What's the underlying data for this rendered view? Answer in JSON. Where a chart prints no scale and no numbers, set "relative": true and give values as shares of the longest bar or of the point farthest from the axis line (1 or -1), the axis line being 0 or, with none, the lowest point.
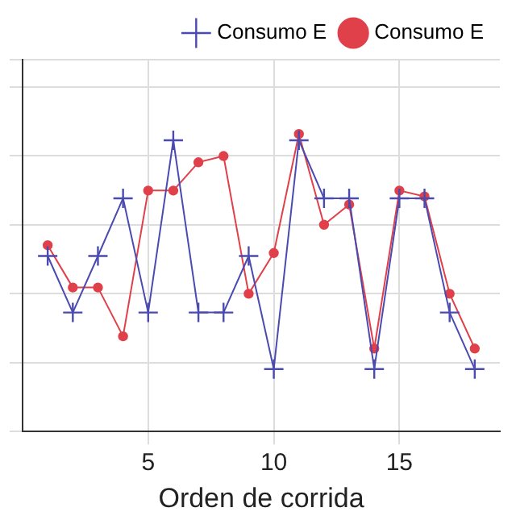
{
  "chart_data": {
    "type": "line",
    "xlabel": "Orden de corrida",
    "relative": true,
    "x": [
      1,
      2,
      3,
      4,
      5,
      6,
      7,
      8,
      9,
      10,
      11,
      12,
      13,
      14,
      15,
      16,
      17,
      18
    ],
    "xlim": [
      0,
      19
    ],
    "xticks": [
      5,
      10,
      15
    ],
    "grid": true,
    "legend": "top right",
    "series": [
      {
        "name": "Consumo E",
        "color": "#e0404a",
        "marker": "circle",
        "values": [
          0.626,
          0.484,
          0.484,
          0.32,
          0.81,
          0.81,
          0.905,
          0.926,
          0.463,
          0.6,
          1,
          0.695,
          0.763,
          0.279,
          0.81,
          0.79,
          0.463,
          0.279
        ]
      },
      {
        "name": "Consumo E",
        "color": "#4a4ab0",
        "marker": "cross",
        "values": [
          0.59,
          0.4,
          0.59,
          0.784,
          0.4,
          0.979,
          0.4,
          0.4,
          0.59,
          0.21,
          0.979,
          0.784,
          0.784,
          0.21,
          0.784,
          0.784,
          0.4,
          0.21
        ]
      }
    ]
  }
}
